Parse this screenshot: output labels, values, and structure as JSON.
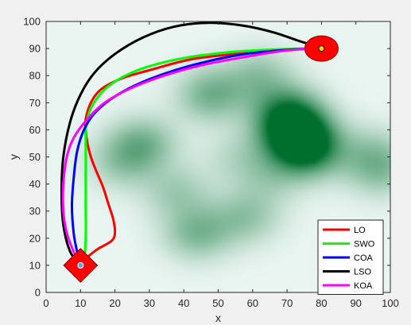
{
  "chart_data": {
    "type": "line",
    "title": "",
    "xlabel": "x",
    "ylabel": "y",
    "xlim": [
      0,
      100
    ],
    "ylim": [
      0,
      100
    ],
    "xticks": [
      "0",
      "10",
      "20",
      "30",
      "40",
      "50",
      "60",
      "70",
      "80",
      "90",
      "100"
    ],
    "yticks": [
      "0",
      "10",
      "20",
      "30",
      "40",
      "50",
      "60",
      "70",
      "80",
      "90",
      "100"
    ],
    "legend_position": "bottom-right",
    "start": {
      "x": 10,
      "y": 10,
      "marker": "red square"
    },
    "goal": {
      "x": 80,
      "y": 90,
      "marker": "red circle"
    },
    "background": "green threat-density heatmap",
    "threats": [
      {
        "x": 73,
        "y": 58,
        "strength": 1.0
      },
      {
        "x": 70,
        "y": 66,
        "strength": 0.75
      },
      {
        "x": 76,
        "y": 52,
        "strength": 0.7
      },
      {
        "x": 48,
        "y": 73,
        "strength": 0.5
      },
      {
        "x": 62,
        "y": 80,
        "strength": 0.35
      },
      {
        "x": 28,
        "y": 55,
        "strength": 0.45
      },
      {
        "x": 22,
        "y": 48,
        "strength": 0.3
      },
      {
        "x": 44,
        "y": 22,
        "strength": 0.45
      },
      {
        "x": 58,
        "y": 28,
        "strength": 0.35
      },
      {
        "x": 38,
        "y": 37,
        "strength": 0.3
      },
      {
        "x": 97,
        "y": 45,
        "strength": 0.35
      },
      {
        "x": 94,
        "y": 52,
        "strength": 0.25
      },
      {
        "x": 56,
        "y": 50,
        "strength": 0.2
      },
      {
        "x": 65,
        "y": 42,
        "strength": 0.22
      }
    ],
    "series": [
      {
        "name": "LO",
        "color": "#ff0000",
        "x": [
          10,
          12,
          15,
          19,
          20,
          19.5,
          18,
          16.5,
          14.5,
          13,
          12,
          11.5,
          11.5,
          13,
          16,
          22,
          30,
          42,
          55,
          68,
          78,
          80
        ],
        "y": [
          10,
          13,
          16,
          19,
          22,
          27,
          33,
          39,
          45,
          50,
          55,
          60,
          64,
          70,
          75,
          79,
          82,
          86,
          88,
          89.5,
          90,
          90
        ]
      },
      {
        "name": "SWO",
        "color": "#00ff00",
        "x": [
          10,
          11,
          11.5,
          11.5,
          11.5,
          11.5,
          11.5,
          11.5,
          12,
          13,
          15,
          18,
          23,
          30,
          40,
          52,
          64,
          74,
          80
        ],
        "y": [
          10,
          12,
          20,
          31,
          42,
          50,
          55,
          60,
          64,
          68,
          72,
          76,
          80,
          83.5,
          86.5,
          88.5,
          89.5,
          90,
          90
        ]
      },
      {
        "name": "COA",
        "color": "#0000ff",
        "x": [
          10,
          9,
          8,
          7.5,
          8,
          9,
          11,
          14,
          19,
          26,
          35,
          46,
          58,
          70,
          78,
          80
        ],
        "y": [
          10,
          15,
          22,
          32,
          42,
          52,
          60,
          66,
          71.5,
          76.5,
          81,
          85,
          88,
          89.5,
          90,
          90
        ]
      },
      {
        "name": "LSO",
        "color": "#000000",
        "x": [
          10,
          7,
          5,
          4.5,
          5,
          7,
          10,
          14,
          20,
          28,
          37,
          47,
          57,
          66,
          73,
          78,
          80
        ],
        "y": [
          10,
          15,
          25,
          37,
          50,
          63,
          73,
          81,
          88,
          94,
          98,
          99.5,
          98.5,
          96,
          93,
          91,
          90
        ]
      },
      {
        "name": "KOA",
        "color": "#ff00ff",
        "x": [
          10,
          8,
          6,
          5,
          5,
          6,
          8,
          12,
          17,
          24,
          33,
          44,
          56,
          68,
          77,
          80
        ],
        "y": [
          10,
          15,
          22,
          30,
          40,
          50,
          57,
          64,
          70,
          75,
          79.5,
          83.5,
          86.5,
          89,
          90,
          90
        ]
      }
    ]
  }
}
